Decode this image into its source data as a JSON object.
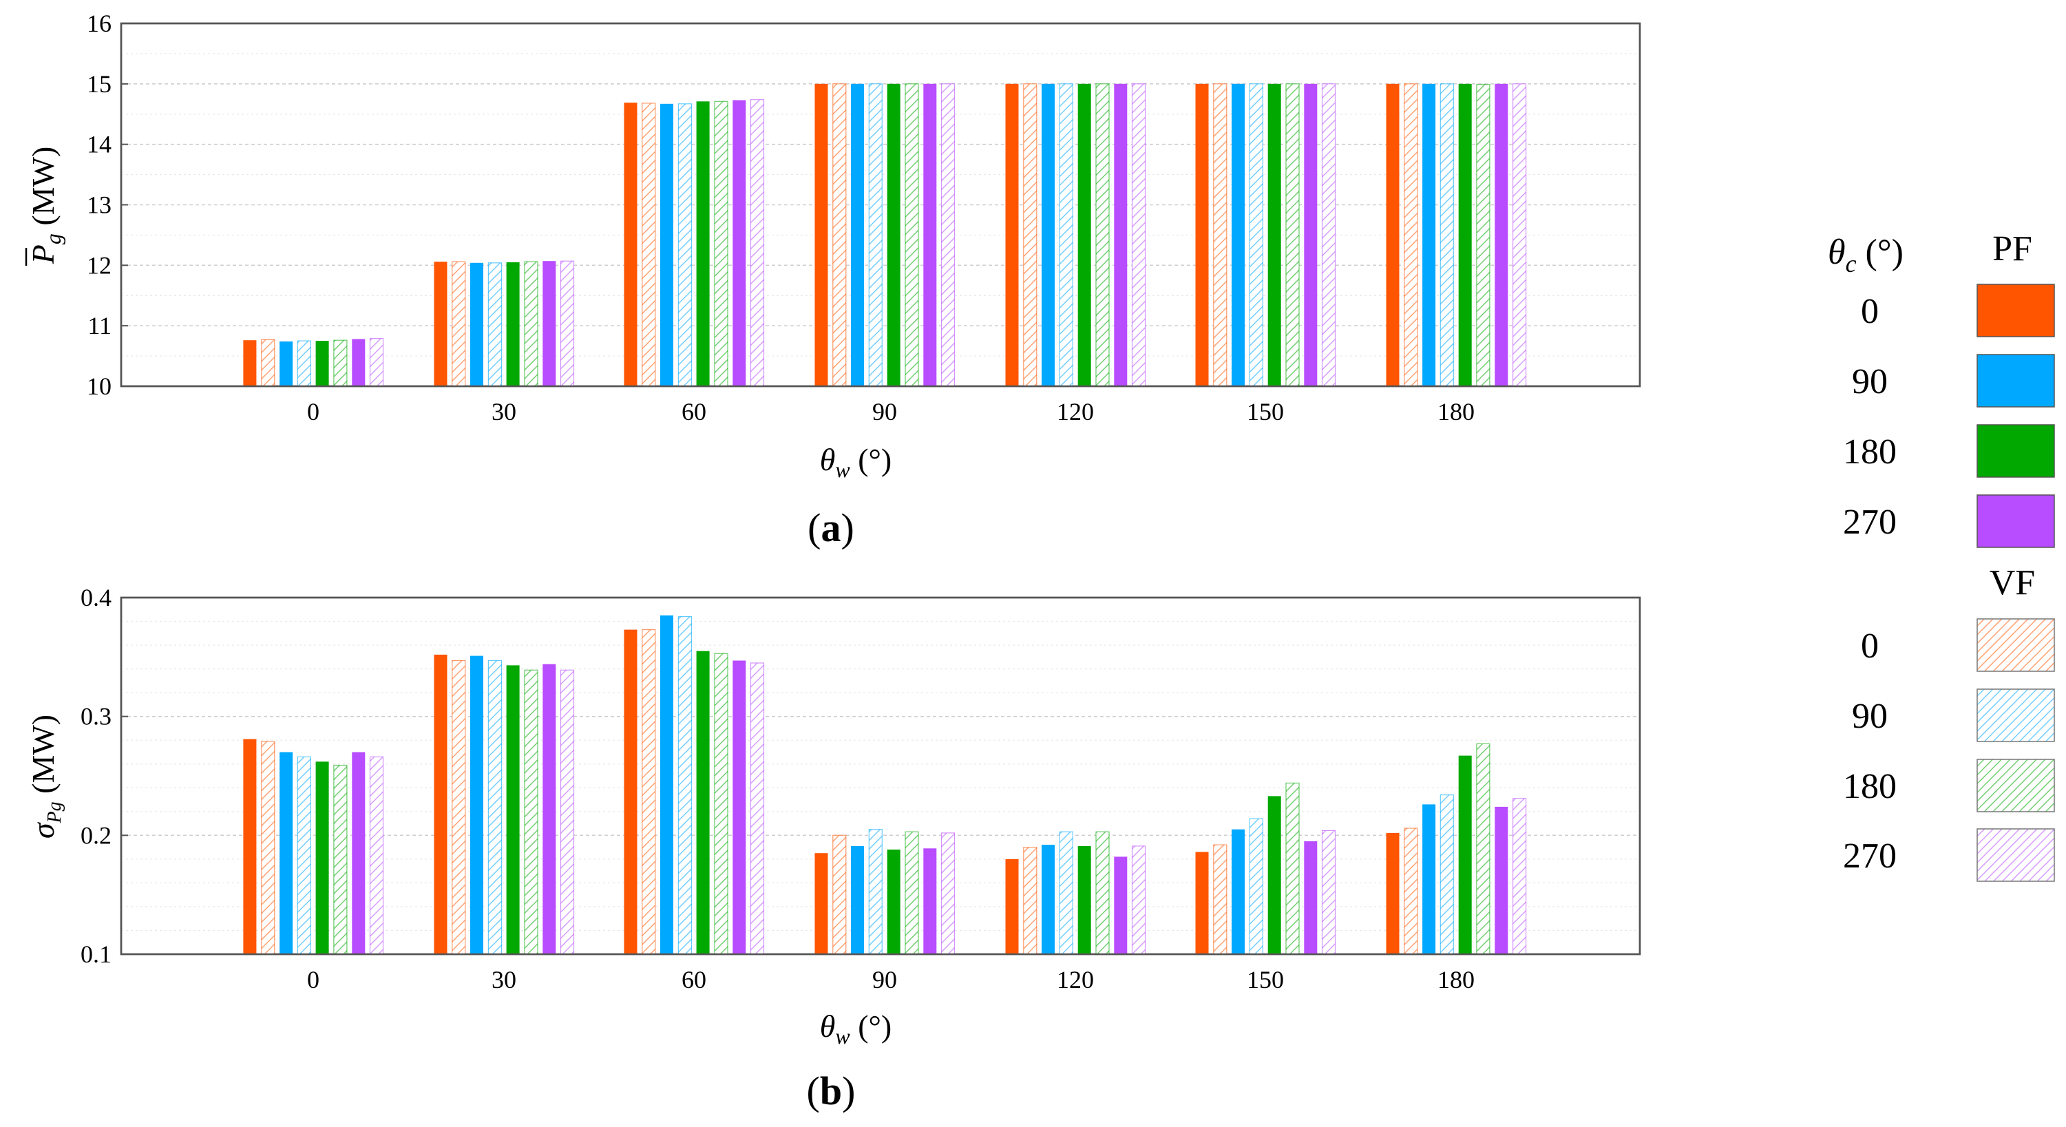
{
  "colors": {
    "0": "#ff5500",
    "90": "#00a8ff",
    "180": "#00a800",
    "270": "#b84cff",
    "axis": "#555555",
    "grid": "#cfcfcf",
    "minor_grid": "#e8e8e8",
    "bar_edge": "#c95a2a"
  },
  "legend": {
    "heading_symbol": "θ",
    "heading_sub": "c",
    "heading_unit": " (°)",
    "pf_label": "PF",
    "vf_label": "VF",
    "pf_items": [
      {
        "label": "0",
        "key": "0"
      },
      {
        "label": "90",
        "key": "90"
      },
      {
        "label": "180",
        "key": "180"
      },
      {
        "label": "270",
        "key": "270"
      }
    ],
    "vf_items": [
      {
        "label": "0",
        "key": "0"
      },
      {
        "label": "90",
        "key": "90"
      },
      {
        "label": "180",
        "key": "180"
      },
      {
        "label": "270",
        "key": "270"
      }
    ]
  },
  "chart_data": [
    {
      "type": "bar",
      "panel_label": "(a)",
      "ylabel_symbol": "P",
      "ylabel_sub": "g",
      "ylabel_unit": " (MW)",
      "xlabel_symbol": "θ",
      "xlabel_sub": "w",
      "xlabel_unit": " (°)",
      "ylim": [
        10,
        16
      ],
      "yticks": [
        "10",
        "11",
        "12",
        "13",
        "14",
        "15",
        "16"
      ],
      "minor_step": 0.5,
      "categories": [
        "0",
        "30",
        "60",
        "90",
        "120",
        "150",
        "180"
      ],
      "series": [
        {
          "name": "PF 0",
          "key": "0",
          "hatched": false,
          "values": [
            10.76,
            12.06,
            14.69,
            15.0,
            15.0,
            15.0,
            15.0
          ]
        },
        {
          "name": "VF 0",
          "key": "0",
          "hatched": true,
          "values": [
            10.77,
            12.06,
            14.68,
            15.0,
            15.0,
            15.0,
            15.0
          ]
        },
        {
          "name": "PF 90",
          "key": "90",
          "hatched": false,
          "values": [
            10.74,
            12.04,
            14.67,
            15.0,
            15.0,
            15.0,
            15.0
          ]
        },
        {
          "name": "VF 90",
          "key": "90",
          "hatched": true,
          "values": [
            10.75,
            12.04,
            14.67,
            15.0,
            15.0,
            15.0,
            15.0
          ]
        },
        {
          "name": "PF 180",
          "key": "180",
          "hatched": false,
          "values": [
            10.75,
            12.05,
            14.71,
            15.0,
            15.0,
            15.0,
            15.0
          ]
        },
        {
          "name": "VF 180",
          "key": "180",
          "hatched": true,
          "values": [
            10.76,
            12.06,
            14.71,
            15.0,
            15.0,
            15.0,
            14.99
          ]
        },
        {
          "name": "PF 270",
          "key": "270",
          "hatched": false,
          "values": [
            10.78,
            12.07,
            14.73,
            15.0,
            15.0,
            15.0,
            15.0
          ]
        },
        {
          "name": "VF 270",
          "key": "270",
          "hatched": true,
          "values": [
            10.79,
            12.07,
            14.74,
            15.0,
            15.0,
            15.0,
            15.0
          ]
        }
      ]
    },
    {
      "type": "bar",
      "panel_label": "(b)",
      "ylabel_symbol": "σ",
      "ylabel_sub": "Pg",
      "ylabel_unit": " (MW)",
      "xlabel_symbol": "θ",
      "xlabel_sub": "w",
      "xlabel_unit": " (°)",
      "ylim": [
        0.1,
        0.4
      ],
      "yticks": [
        "0.1",
        "0.2",
        "0.3",
        "0.4"
      ],
      "minor_step": 0.02,
      "categories": [
        "0",
        "30",
        "60",
        "90",
        "120",
        "150",
        "180"
      ],
      "series": [
        {
          "name": "PF 0",
          "key": "0",
          "hatched": false,
          "values": [
            0.281,
            0.352,
            0.373,
            0.185,
            0.18,
            0.186,
            0.202
          ]
        },
        {
          "name": "VF 0",
          "key": "0",
          "hatched": true,
          "values": [
            0.279,
            0.347,
            0.373,
            0.2,
            0.19,
            0.192,
            0.206
          ]
        },
        {
          "name": "PF 90",
          "key": "90",
          "hatched": false,
          "values": [
            0.27,
            0.351,
            0.385,
            0.191,
            0.192,
            0.205,
            0.226
          ]
        },
        {
          "name": "VF 90",
          "key": "90",
          "hatched": true,
          "values": [
            0.266,
            0.347,
            0.384,
            0.205,
            0.203,
            0.214,
            0.234
          ]
        },
        {
          "name": "PF 180",
          "key": "180",
          "hatched": false,
          "values": [
            0.262,
            0.343,
            0.355,
            0.188,
            0.191,
            0.233,
            0.267
          ]
        },
        {
          "name": "VF 180",
          "key": "180",
          "hatched": true,
          "values": [
            0.259,
            0.339,
            0.353,
            0.203,
            0.203,
            0.244,
            0.277
          ]
        },
        {
          "name": "PF 270",
          "key": "270",
          "hatched": false,
          "values": [
            0.27,
            0.344,
            0.347,
            0.189,
            0.182,
            0.195,
            0.224
          ]
        },
        {
          "name": "VF 270",
          "key": "270",
          "hatched": true,
          "values": [
            0.266,
            0.339,
            0.345,
            0.202,
            0.191,
            0.204,
            0.231
          ]
        }
      ]
    }
  ]
}
